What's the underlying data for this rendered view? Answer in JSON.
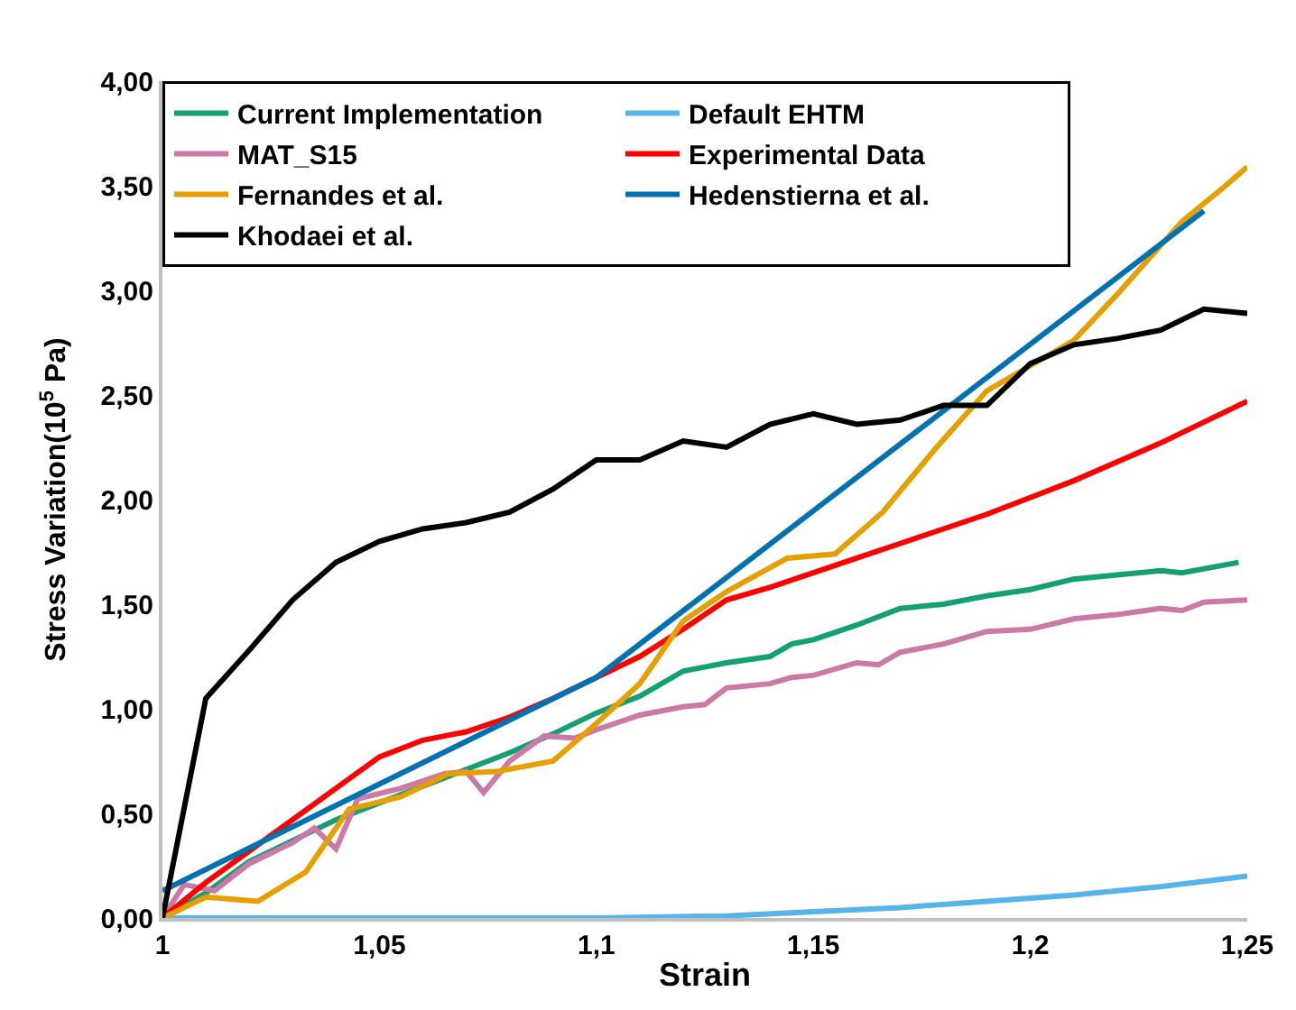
{
  "chart_data": {
    "type": "line",
    "xlabel": "Strain",
    "ylabel": "Stress Variation(10$^{5}$ Pa)",
    "xlim": [
      1,
      1.25
    ],
    "xticks": [
      1,
      {
        "value": 1.05,
        "label": "1,05"
      },
      {
        "value": 1.1,
        "label": "1,1"
      },
      {
        "value": 1.15,
        "label": "1,15"
      },
      {
        "value": 1.2,
        "label": "1,2"
      },
      {
        "value": 1.25,
        "label": "1,25"
      }
    ],
    "ylim": [
      0,
      4
    ],
    "yticks": [
      {
        "value": 0,
        "label": "0,00"
      },
      {
        "value": 0.5,
        "label": "0,50"
      },
      {
        "value": 1,
        "label": "1,00"
      },
      {
        "value": 1.5,
        "label": "1,50"
      },
      {
        "value": 2,
        "label": "2,00"
      },
      {
        "value": 2.5,
        "label": "2,50"
      },
      {
        "value": 3,
        "label": "3,00"
      },
      {
        "value": 3.5,
        "label": "3,50"
      },
      {
        "value": 4,
        "label": "4,00"
      }
    ],
    "legend": "top",
    "marker": "none",
    "line_style": "solid",
    "series": [
      {
        "name": "Current Implementation",
        "color": "#13a075",
        "x": [
          1,
          1.01,
          1.02,
          1.03,
          1.04,
          1.05,
          1.06,
          1.07,
          1.08,
          1.09,
          1.1,
          1.11,
          1.12,
          1.13,
          1.14,
          1.145,
          1.15,
          1.16,
          1.17,
          1.18,
          1.19,
          1.2,
          1.21,
          1.22,
          1.23,
          1.235,
          1.248
        ],
        "values": [
          0,
          0.12,
          0.27,
          0.37,
          0.47,
          0.55,
          0.63,
          0.71,
          0.79,
          0.88,
          0.98,
          1.06,
          1.18,
          1.22,
          1.25,
          1.31,
          1.33,
          1.4,
          1.48,
          1.5,
          1.54,
          1.57,
          1.62,
          1.64,
          1.66,
          1.65,
          1.7
        ]
      },
      {
        "name": "Default EHTM",
        "color": "#56b4e9",
        "x": [
          1,
          1.1,
          1.13,
          1.15,
          1.17,
          1.19,
          1.21,
          1.23,
          1.25
        ],
        "values": [
          0,
          0,
          0.01,
          0.03,
          0.05,
          0.08,
          0.11,
          0.15,
          0.2
        ]
      },
      {
        "name": "MAT_S15",
        "color": "#cc79a7",
        "x": [
          1,
          1.005,
          1.012,
          1.02,
          1.03,
          1.035,
          1.04,
          1.045,
          1.055,
          1.065,
          1.07,
          1.074,
          1.08,
          1.088,
          1.095,
          1.1,
          1.11,
          1.12,
          1.125,
          1.13,
          1.14,
          1.145,
          1.15,
          1.16,
          1.165,
          1.17,
          1.18,
          1.19,
          1.2,
          1.21,
          1.22,
          1.23,
          1.235,
          1.24,
          1.25
        ],
        "values": [
          0,
          0.16,
          0.13,
          0.26,
          0.36,
          0.43,
          0.33,
          0.57,
          0.62,
          0.69,
          0.7,
          0.6,
          0.75,
          0.87,
          0.86,
          0.9,
          0.97,
          1.01,
          1.02,
          1.1,
          1.12,
          1.15,
          1.16,
          1.22,
          1.21,
          1.27,
          1.31,
          1.37,
          1.38,
          1.43,
          1.45,
          1.48,
          1.47,
          1.51,
          1.52
        ]
      },
      {
        "name": "Experimental Data",
        "color": "#ff0000",
        "x": [
          1,
          1.01,
          1.02,
          1.03,
          1.04,
          1.05,
          1.06,
          1.07,
          1.08,
          1.09,
          1.1,
          1.11,
          1.12,
          1.13,
          1.14,
          1.15,
          1.16,
          1.17,
          1.18,
          1.19,
          1.2,
          1.21,
          1.22,
          1.23,
          1.24,
          1.25
        ],
        "values": [
          0,
          0.17,
          0.32,
          0.47,
          0.62,
          0.77,
          0.85,
          0.89,
          0.96,
          1.05,
          1.15,
          1.25,
          1.38,
          1.52,
          1.58,
          1.65,
          1.72,
          1.79,
          1.86,
          1.93,
          2.01,
          2.09,
          2.18,
          2.27,
          2.37,
          2.47
        ]
      },
      {
        "name": "Fernandes et al.",
        "color": "#e69f00",
        "x": [
          1,
          1.01,
          1.022,
          1.033,
          1.043,
          1.055,
          1.066,
          1.077,
          1.09,
          1.1,
          1.11,
          1.12,
          1.13,
          1.144,
          1.155,
          1.166,
          1.178,
          1.19,
          1.2,
          1.21,
          1.22,
          1.235,
          1.245,
          1.25
        ],
        "values": [
          0,
          0.1,
          0.08,
          0.22,
          0.52,
          0.58,
          0.69,
          0.7,
          0.75,
          0.93,
          1.12,
          1.42,
          1.56,
          1.72,
          1.74,
          1.94,
          2.24,
          2.52,
          2.64,
          2.76,
          2.98,
          3.33,
          3.5,
          3.59
        ]
      },
      {
        "name": "Hedenstierna et al.",
        "color": "#0072b2",
        "x": [
          1,
          1.1,
          1.24
        ],
        "values": [
          0.13,
          1.15,
          3.38
        ]
      },
      {
        "name": "Khodaei et al.",
        "color": "#000000",
        "x": [
          1,
          1.01,
          1.02,
          1.03,
          1.04,
          1.05,
          1.06,
          1.07,
          1.08,
          1.09,
          1.1,
          1.11,
          1.12,
          1.13,
          1.14,
          1.15,
          1.16,
          1.17,
          1.18,
          1.19,
          1.2,
          1.21,
          1.22,
          1.23,
          1.24,
          1.25
        ],
        "values": [
          0,
          1.05,
          1.28,
          1.52,
          1.7,
          1.8,
          1.86,
          1.89,
          1.94,
          2.05,
          2.19,
          2.19,
          2.28,
          2.25,
          2.36,
          2.41,
          2.36,
          2.38,
          2.45,
          2.45,
          2.65,
          2.74,
          2.77,
          2.81,
          2.91,
          2.89
        ]
      }
    ]
  }
}
